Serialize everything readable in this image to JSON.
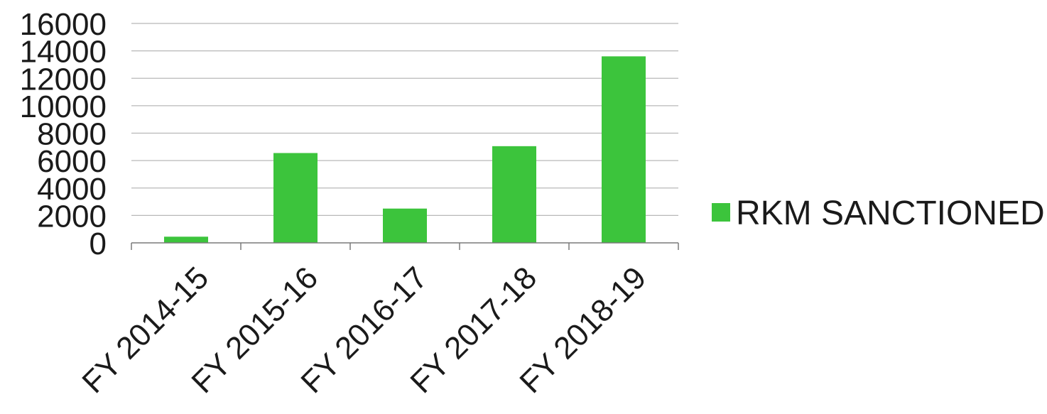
{
  "chart_data": {
    "type": "bar",
    "categories": [
      "FY 2014-15",
      "FY 2015-16",
      "FY 2016-17",
      "FY 2017-18",
      "FY 2018-19"
    ],
    "series": [
      {
        "name": "RKM SANCTIONED",
        "values": [
          450,
          6550,
          2500,
          7050,
          13600
        ],
        "color": "#3cc43c"
      }
    ],
    "y_ticks": [
      "0",
      "2000",
      "4000",
      "6000",
      "8000",
      "10000",
      "12000",
      "14000",
      "16000"
    ],
    "ylim": [
      0,
      16000
    ],
    "grid": true,
    "legend": "right",
    "title": "",
    "xlabel": "",
    "ylabel": ""
  }
}
